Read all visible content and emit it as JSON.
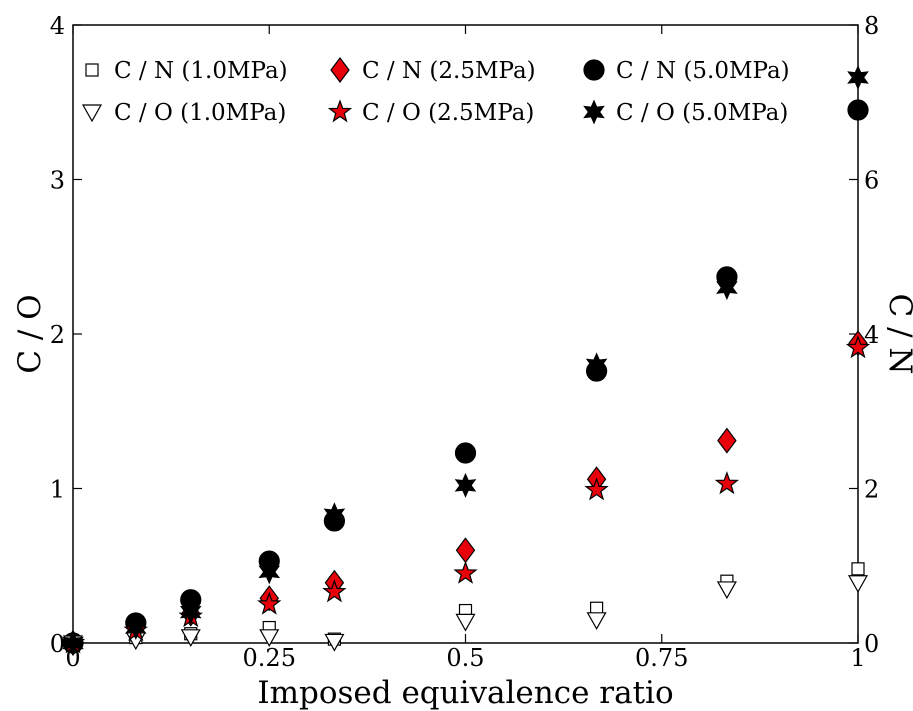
{
  "chart_data": {
    "type": "scatter",
    "xlabel": "Imposed equivalence ratio",
    "ylabel_left": "C / O",
    "ylabel_right": "C / N",
    "xlim": [
      0,
      1
    ],
    "ylim_left": [
      0,
      4
    ],
    "ylim_right": [
      0,
      8
    ],
    "x_ticks": [
      0,
      0.25,
      0.5,
      0.75,
      1
    ],
    "x_tick_labels": [
      "0",
      "0.25",
      "0.5",
      "0.75",
      "1"
    ],
    "y_left_ticks": [
      0,
      1,
      2,
      3,
      4
    ],
    "y_left_tick_labels": [
      "0",
      "1",
      "2",
      "3",
      "4"
    ],
    "y_right_ticks": [
      0,
      2,
      4,
      6,
      8
    ],
    "y_right_tick_labels": [
      "0",
      "2",
      "4",
      "6",
      "8"
    ],
    "grid": false,
    "legend_position": "top",
    "series": [
      {
        "name": "C / N (1.0MPa)",
        "axis": "right",
        "marker": "square",
        "color": "#000000",
        "fill": "#ffffff",
        "x": [
          0,
          0.08,
          0.15,
          0.25,
          0.333,
          0.5,
          0.667,
          0.833,
          1.0
        ],
        "y": [
          0.0,
          0.07,
          0.12,
          0.2,
          0.05,
          0.42,
          0.45,
          0.8,
          0.96
        ]
      },
      {
        "name": "C / N (2.5MPa)",
        "axis": "right",
        "marker": "diamond",
        "color": "#000000",
        "fill": "#e8000b",
        "x": [
          0,
          0.08,
          0.15,
          0.25,
          0.333,
          0.5,
          0.667,
          0.833,
          1.0
        ],
        "y": [
          0.0,
          0.2,
          0.38,
          0.58,
          0.78,
          1.2,
          2.12,
          2.62,
          3.88
        ]
      },
      {
        "name": "C / N (5.0MPa)",
        "axis": "right",
        "marker": "circle",
        "color": "#000000",
        "fill": "#000000",
        "x": [
          0,
          0.08,
          0.15,
          0.25,
          0.333,
          0.5,
          0.667,
          0.833,
          1.0
        ],
        "y": [
          0.0,
          0.26,
          0.56,
          1.06,
          1.58,
          2.46,
          3.52,
          4.74,
          6.9
        ]
      },
      {
        "name": "C / O (1.0MPa)",
        "axis": "left",
        "marker": "triangle-down",
        "color": "#000000",
        "fill": "#ffffff",
        "x": [
          0,
          0.08,
          0.15,
          0.25,
          0.333,
          0.5,
          0.667,
          0.833,
          1.0
        ],
        "y": [
          0.0,
          0.02,
          0.04,
          0.04,
          0.01,
          0.14,
          0.15,
          0.35,
          0.39
        ]
      },
      {
        "name": "C / O (2.5MPa)",
        "axis": "left",
        "marker": "star5",
        "color": "#000000",
        "fill": "#e8000b",
        "x": [
          0,
          0.08,
          0.15,
          0.25,
          0.333,
          0.5,
          0.667,
          0.833,
          1.0
        ],
        "y": [
          0.0,
          0.08,
          0.17,
          0.25,
          0.33,
          0.45,
          0.99,
          1.03,
          1.91
        ]
      },
      {
        "name": "C / O (5.0MPa)",
        "axis": "left",
        "marker": "star6",
        "color": "#000000",
        "fill": "#000000",
        "x": [
          0,
          0.08,
          0.15,
          0.25,
          0.333,
          0.5,
          0.667,
          0.833,
          1.0
        ],
        "y": [
          0.0,
          0.1,
          0.2,
          0.46,
          0.83,
          1.02,
          1.8,
          2.3,
          3.66
        ]
      }
    ]
  }
}
